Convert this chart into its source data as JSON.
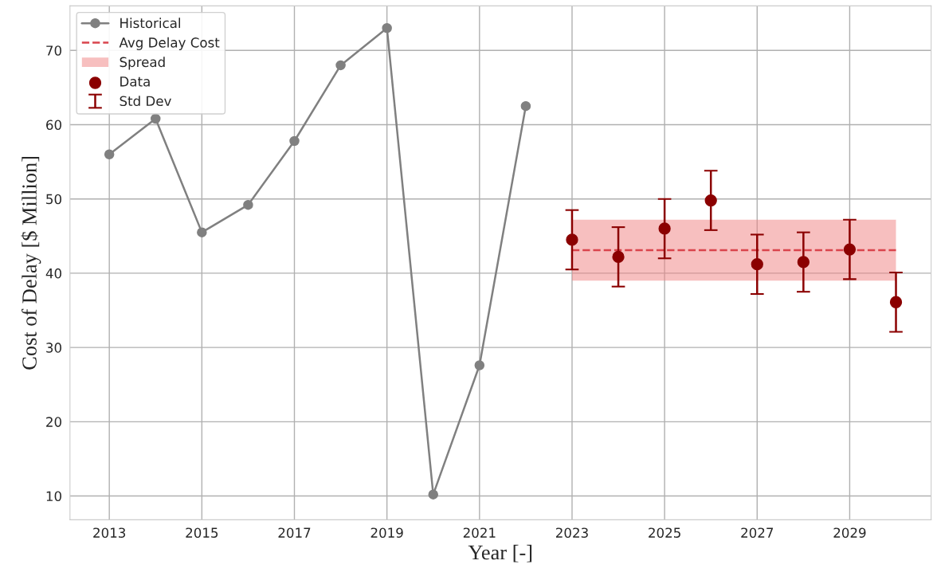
{
  "chart_data": {
    "type": "line",
    "xlabel": "Year [-]",
    "ylabel": "Cost of Delay [$ Million]",
    "series": [
      {
        "name": "Historical",
        "color": "#808080",
        "marker": "circle",
        "x": [
          2013,
          2014,
          2015,
          2016,
          2017,
          2018,
          2019,
          2020,
          2021,
          2022
        ],
        "values": [
          56,
          60.8,
          45.5,
          49.2,
          57.8,
          68,
          73,
          10.2,
          27.6,
          62.5
        ]
      },
      {
        "name": "Data",
        "type": "scatter",
        "color": "#8b0000",
        "marker": "circle",
        "x": [
          2023,
          2024,
          2025,
          2026,
          2027,
          2028,
          2029,
          2030
        ],
        "values": [
          44.5,
          42.2,
          46.0,
          49.8,
          41.2,
          41.5,
          43.2,
          36.1
        ],
        "errors": [
          4,
          4,
          4,
          4,
          4,
          4,
          4,
          4
        ]
      }
    ],
    "annotations": [
      "Std Dev"
    ],
    "ref_lines": [
      {
        "axis": "y",
        "value": 43.1,
        "label": "Avg Delay Cost",
        "color": "#d9444c",
        "line_style": "dashed"
      }
    ],
    "bands": [
      {
        "axis": "y",
        "from": 39.0,
        "to": 47.2,
        "label": "Spread",
        "color": "#f08080"
      }
    ],
    "xlim": [
      2012.15,
      2030.76
    ],
    "xticks": [
      2013,
      2015,
      2017,
      2019,
      2021,
      2023,
      2025,
      2027,
      2029
    ],
    "ylim": [
      6.8,
      76
    ],
    "yticks": [
      10,
      20,
      30,
      40,
      50,
      60,
      70
    ],
    "grid": true,
    "legend": "top left"
  }
}
